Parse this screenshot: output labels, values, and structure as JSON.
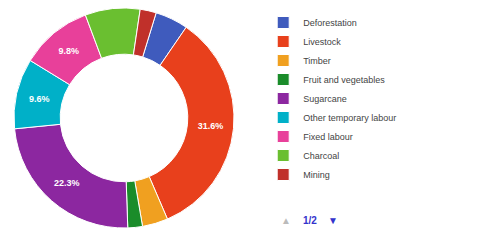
{
  "chart_data": {
    "type": "pie",
    "categories": [
      "Deforestation",
      "Livestock",
      "Timber",
      "Fruit and vegetables",
      "Sugarcane",
      "Other temporary labour",
      "Fixed labour",
      "Charcoal",
      "Mining"
    ],
    "values": [
      4.5,
      31.6,
      3.5,
      2.0,
      22.3,
      9.6,
      9.8,
      7.5,
      2.2
    ],
    "value_labels": [
      null,
      "31.6%",
      null,
      null,
      "22.3%",
      "9.6%",
      "9.8%",
      null,
      null
    ],
    "colors": [
      "#3f5bbd",
      "#e8401c",
      "#f0a020",
      "#1a8c2a",
      "#8c27a0",
      "#00b0c8",
      "#e8409a",
      "#6abf30",
      "#c0302a"
    ],
    "data_labels": true,
    "legend": "right",
    "annotations": [
      {
        "text": "▲",
        "color": "#bbbbbb"
      },
      {
        "text": "1/2",
        "color": "#3333cc"
      },
      {
        "text": "▼",
        "color": "#3333cc"
      }
    ]
  }
}
